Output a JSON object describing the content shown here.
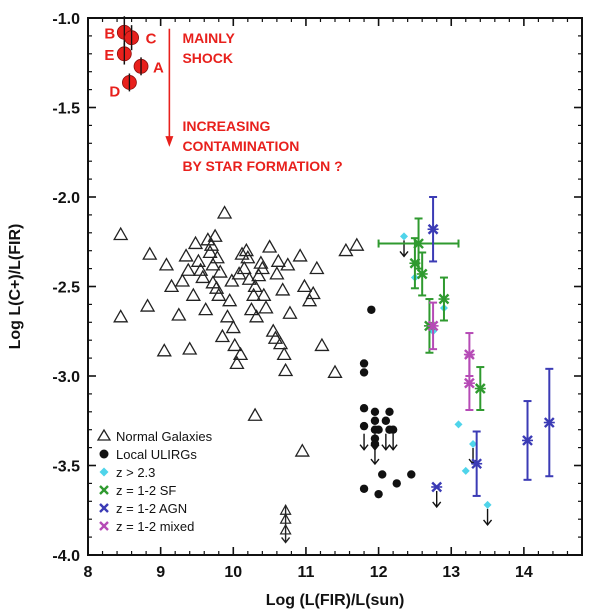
{
  "chart_data": {
    "type": "scatter",
    "title": "",
    "xlabel": "Log (L(FIR)/L(sun)",
    "ylabel": "Log L(C+)/L(FIR)",
    "xlim": [
      8,
      14.8
    ],
    "ylim": [
      -4.0,
      -1.0
    ],
    "xticks": [
      8,
      9,
      10,
      11,
      12,
      13,
      14
    ],
    "yticks": [
      -4.0,
      -3.5,
      -3.0,
      -2.5,
      -2.0,
      -1.5,
      -1.0
    ],
    "xtick_labels": [
      "8",
      "9",
      "10",
      "11",
      "12",
      "13",
      "14"
    ],
    "ytick_labels": [
      "-4.0",
      "-3.5",
      "-3.0",
      "-2.5",
      "-2.0",
      "-1.5",
      "-1.0"
    ],
    "grid": false,
    "legend_position": "bottom-left",
    "colors": {
      "red": "#e8201c",
      "cyan": "#4fd4ea",
      "green": "#2f9a2f",
      "blue": "#3b3bb5",
      "magenta": "#b64bb6",
      "black": "#111111"
    },
    "annotations": [
      {
        "lines": [
          "MAINLY",
          "SHOCK"
        ],
        "x": 9.3,
        "y": -1.14
      },
      {
        "lines": [
          "INCREASING",
          "CONTAMINATION",
          "BY STAR FORMATION ?"
        ],
        "x": 9.3,
        "y": -1.63
      }
    ],
    "labeled_points": [
      {
        "label": "B",
        "x": 8.5,
        "y": -1.08,
        "err": 0.09
      },
      {
        "label": "C",
        "x": 8.6,
        "y": -1.11,
        "err": 0.07
      },
      {
        "label": "E",
        "x": 8.5,
        "y": -1.2,
        "err": 0.06
      },
      {
        "label": "A",
        "x": 8.73,
        "y": -1.27,
        "err": 0.05
      },
      {
        "label": "D",
        "x": 8.57,
        "y": -1.36,
        "err": 0.05
      }
    ],
    "series": [
      {
        "name": "Normal Galaxies",
        "marker": "open-triangle",
        "points": [
          [
            8.45,
            -2.21
          ],
          [
            8.45,
            -2.67
          ],
          [
            8.82,
            -2.61
          ],
          [
            8.85,
            -2.32
          ],
          [
            9.05,
            -2.86
          ],
          [
            9.08,
            -2.38
          ],
          [
            9.15,
            -2.5
          ],
          [
            9.25,
            -2.66
          ],
          [
            9.3,
            -2.47
          ],
          [
            9.35,
            -2.33
          ],
          [
            9.38,
            -2.41
          ],
          [
            9.4,
            -2.85
          ],
          [
            9.45,
            -2.55
          ],
          [
            9.48,
            -2.26
          ],
          [
            9.52,
            -2.36
          ],
          [
            9.55,
            -2.41
          ],
          [
            9.58,
            -2.45
          ],
          [
            9.62,
            -2.63
          ],
          [
            9.65,
            -2.24
          ],
          [
            9.68,
            -2.31
          ],
          [
            9.7,
            -2.27
          ],
          [
            9.72,
            -2.38
          ],
          [
            9.72,
            -2.48
          ],
          [
            9.75,
            -2.22
          ],
          [
            9.77,
            -2.51
          ],
          [
            9.78,
            -2.34
          ],
          [
            9.8,
            -2.55
          ],
          [
            9.82,
            -2.42
          ],
          [
            9.85,
            -2.78
          ],
          [
            9.88,
            -2.09
          ],
          [
            9.92,
            -2.67
          ],
          [
            9.95,
            -2.58
          ],
          [
            9.98,
            -2.47
          ],
          [
            10.0,
            -2.73
          ],
          [
            10.02,
            -2.83
          ],
          [
            10.05,
            -2.93
          ],
          [
            10.08,
            -2.43
          ],
          [
            10.1,
            -2.88
          ],
          [
            10.12,
            -2.32
          ],
          [
            10.15,
            -2.4
          ],
          [
            10.18,
            -2.3
          ],
          [
            10.2,
            -2.34
          ],
          [
            10.22,
            -2.46
          ],
          [
            10.25,
            -2.63
          ],
          [
            10.28,
            -2.55
          ],
          [
            10.3,
            -2.5
          ],
          [
            10.32,
            -2.67
          ],
          [
            10.35,
            -2.44
          ],
          [
            10.38,
            -2.37
          ],
          [
            10.4,
            -2.4
          ],
          [
            10.42,
            -2.55
          ],
          [
            10.45,
            -2.62
          ],
          [
            10.5,
            -2.28
          ],
          [
            10.55,
            -2.75
          ],
          [
            10.58,
            -2.79
          ],
          [
            10.6,
            -2.43
          ],
          [
            10.62,
            -2.36
          ],
          [
            10.65,
            -2.82
          ],
          [
            10.68,
            -2.52
          ],
          [
            10.7,
            -2.88
          ],
          [
            10.75,
            -2.38
          ],
          [
            10.78,
            -2.65
          ],
          [
            10.3,
            -3.22
          ],
          [
            10.95,
            -3.42
          ],
          [
            10.92,
            -2.33
          ],
          [
            10.98,
            -2.5
          ],
          [
            11.05,
            -2.58
          ],
          [
            11.1,
            -2.54
          ],
          [
            11.15,
            -2.4
          ],
          [
            11.22,
            -2.83
          ],
          [
            11.4,
            -2.98
          ],
          [
            11.55,
            -2.3
          ],
          [
            11.7,
            -2.27
          ],
          [
            10.72,
            -2.97
          ]
        ]
      },
      {
        "name": "Local ULIRGs",
        "marker": "filled-circle",
        "points": [
          [
            11.9,
            -2.63
          ],
          [
            11.8,
            -2.93
          ],
          [
            11.8,
            -2.98
          ],
          [
            11.8,
            -3.18
          ],
          [
            11.8,
            -3.28
          ],
          [
            11.95,
            -3.2
          ],
          [
            11.95,
            -3.25
          ],
          [
            11.95,
            -3.3
          ],
          [
            11.95,
            -3.35
          ],
          [
            12.0,
            -3.3
          ],
          [
            12.1,
            -3.25
          ],
          [
            12.15,
            -3.2
          ],
          [
            12.15,
            -3.3
          ],
          [
            12.2,
            -3.3
          ],
          [
            11.95,
            -3.38
          ],
          [
            12.05,
            -3.55
          ],
          [
            11.8,
            -3.63
          ],
          [
            12.0,
            -3.66
          ],
          [
            12.25,
            -3.6
          ],
          [
            12.45,
            -3.55
          ]
        ],
        "upper_limits": [
          [
            11.8,
            -3.3
          ],
          [
            11.95,
            -3.3
          ],
          [
            12.1,
            -3.3
          ],
          [
            12.2,
            -3.3
          ],
          [
            11.95,
            -3.38
          ]
        ]
      },
      {
        "name": "z > 2.3",
        "marker": "cyan-diamond",
        "points": [
          [
            12.35,
            -2.22
          ],
          [
            12.5,
            -2.45
          ],
          [
            12.75,
            -2.75
          ],
          [
            12.9,
            -2.62
          ],
          [
            13.1,
            -3.27
          ],
          [
            13.2,
            -3.53
          ],
          [
            13.3,
            -3.38
          ],
          [
            13.5,
            -3.72
          ]
        ],
        "upper_limits": [
          [
            12.35,
            -2.22
          ],
          [
            13.3,
            -3.38
          ],
          [
            13.5,
            -3.72
          ]
        ]
      },
      {
        "name": "z = 1-2 SF",
        "marker": "green-x",
        "points": [
          {
            "x": 12.55,
            "y": -2.26,
            "yerr": 0.14,
            "xerr": 0.55
          },
          {
            "x": 12.5,
            "y": -2.37,
            "yerr": 0.14
          },
          {
            "x": 12.6,
            "y": -2.43,
            "yerr": 0.12
          },
          {
            "x": 12.9,
            "y": -2.57,
            "yerr": 0.12
          },
          {
            "x": 12.7,
            "y": -2.72,
            "yerr": 0.15
          },
          {
            "x": 13.4,
            "y": -3.07,
            "yerr": 0.12
          }
        ]
      },
      {
        "name": "z = 1-2 AGN",
        "marker": "blue-x",
        "points": [
          {
            "x": 12.75,
            "y": -2.18,
            "yerr": 0.18
          },
          {
            "x": 12.8,
            "y": -3.62
          },
          {
            "x": 13.35,
            "y": -3.49,
            "yerr": 0.18
          },
          {
            "x": 14.05,
            "y": -3.36,
            "yerr": 0.22
          },
          {
            "x": 14.35,
            "y": -3.26,
            "yerr": 0.3
          }
        ],
        "upper_limits": [
          [
            12.8,
            -3.62
          ]
        ]
      },
      {
        "name": "z = 1-2 mixed",
        "marker": "magenta-x",
        "points": [
          {
            "x": 12.75,
            "y": -2.72,
            "yerr": 0.13
          },
          {
            "x": 13.25,
            "y": -2.88,
            "yerr": 0.12
          },
          {
            "x": 13.25,
            "y": -3.04,
            "yerr": 0.15
          }
        ]
      },
      {
        "name": "",
        "marker": "gray-x-limit",
        "points": [
          [
            10.72,
            -3.75
          ],
          [
            10.72,
            -3.8
          ],
          [
            10.72,
            -3.86
          ]
        ]
      }
    ]
  }
}
